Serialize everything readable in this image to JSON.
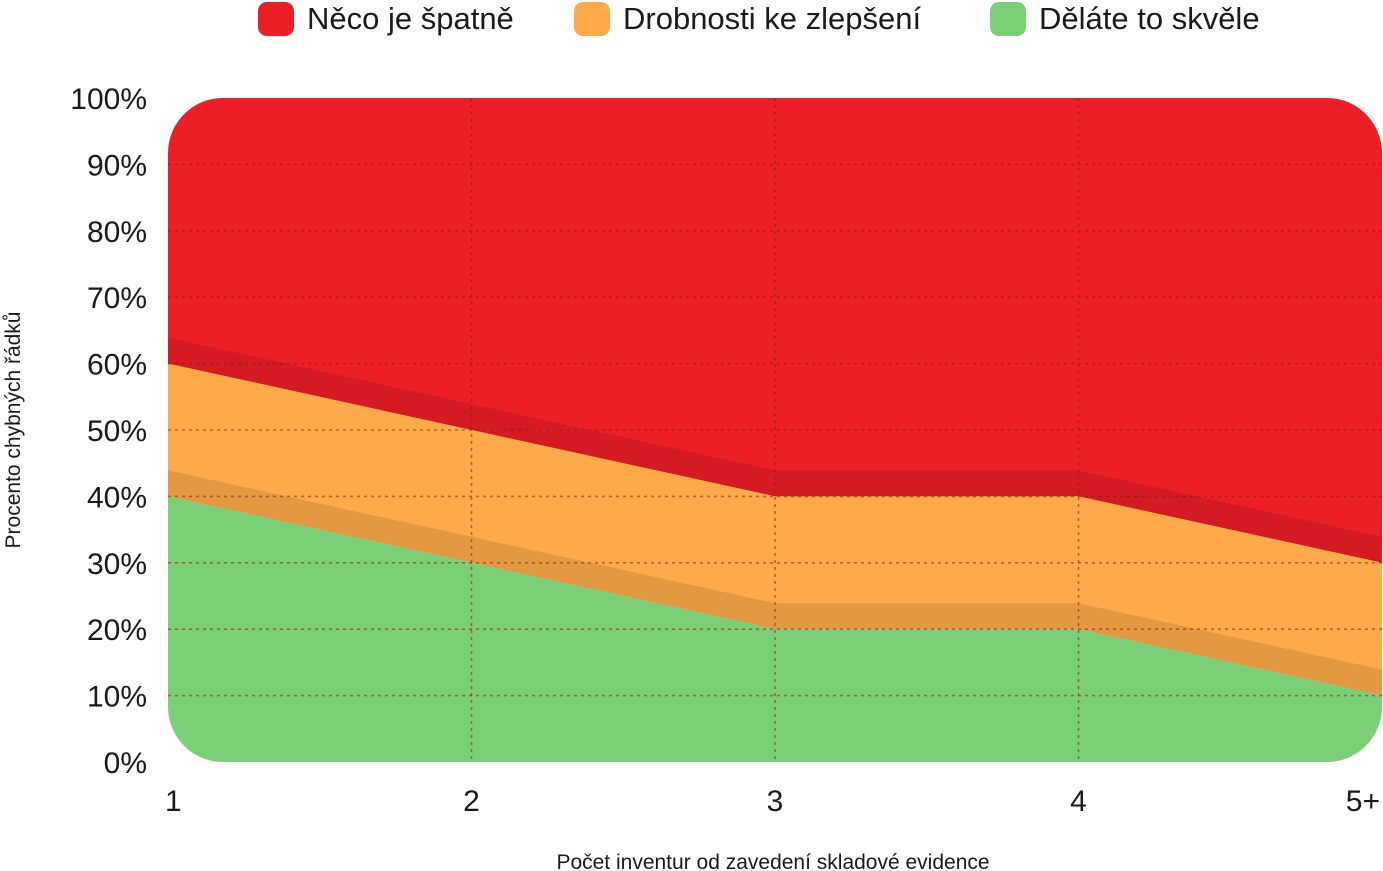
{
  "chart_data": {
    "type": "area",
    "stacked": true,
    "categories": [
      "1",
      "2",
      "3",
      "4",
      "5+"
    ],
    "series": [
      {
        "name": "Děláte to skvěle",
        "color": "#7bcf77",
        "values": [
          40,
          30,
          20,
          20,
          10
        ]
      },
      {
        "name": "Drobnosti ke zlepšení",
        "color": "#fdaa4a",
        "values": [
          20,
          20,
          20,
          20,
          20
        ]
      },
      {
        "name": "Něco je špatně",
        "color": "#ec1f27",
        "values": [
          40,
          50,
          60,
          60,
          70
        ]
      }
    ],
    "legend_order": [
      "Něco je špatně",
      "Drobnosti ke zlepšení",
      "Děláte to skvěle"
    ],
    "legend_position": "top",
    "xlabel": "Počet inventur od zavedení skladové evidence",
    "ylabel": "Procento chybných řádků",
    "ylim": [
      0,
      100
    ],
    "yticks": [
      "0%",
      "10%",
      "20%",
      "30%",
      "40%",
      "50%",
      "60%",
      "70%",
      "80%",
      "90%",
      "100%"
    ],
    "grid": true,
    "grid_style": "dotted"
  }
}
